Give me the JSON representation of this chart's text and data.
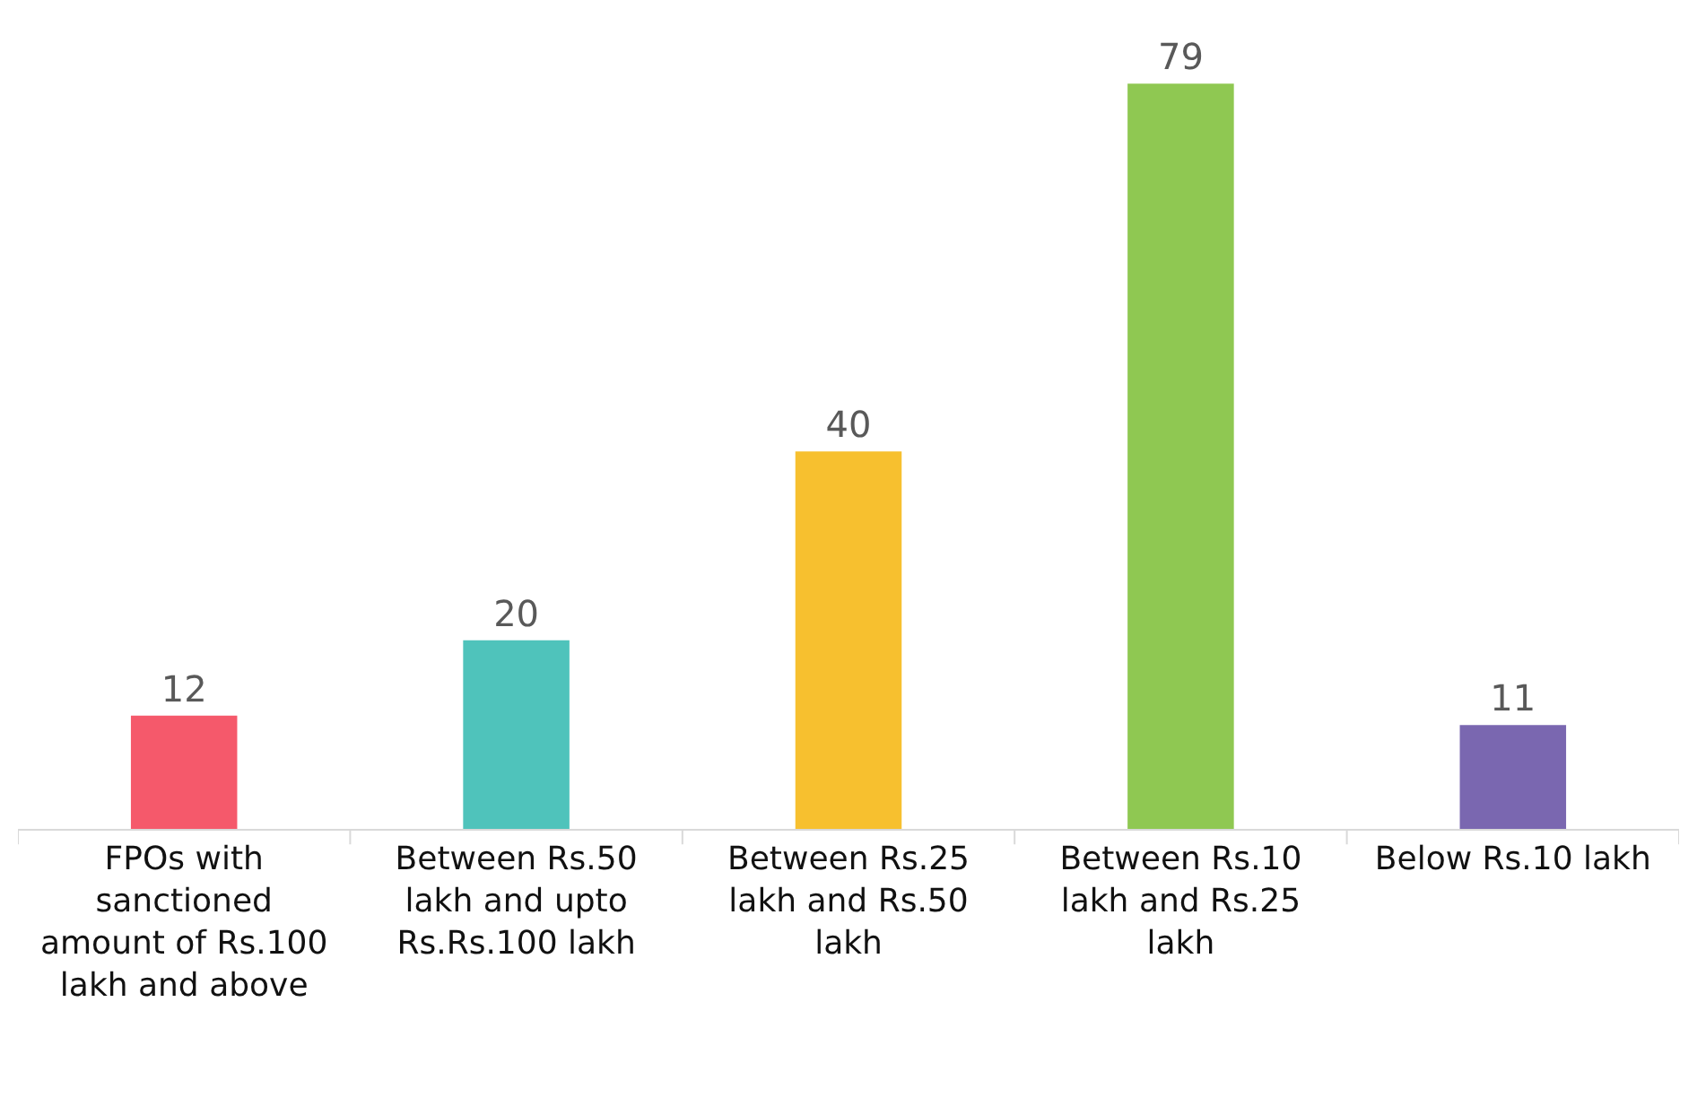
{
  "chart_data": {
    "type": "bar",
    "categories": [
      "FPOs with sanctioned amount of Rs.100 lakh and above",
      "Between Rs.50 lakh and upto Rs.Rs.100 lakh",
      "Between Rs.25 lakh and Rs.50 lakh",
      "Between Rs.10 lakh and Rs.25 lakh",
      "Below Rs.10 lakh"
    ],
    "values": [
      12,
      20,
      40,
      79,
      11
    ],
    "colors": [
      "#f5596b",
      "#4fc3bb",
      "#f7c02f",
      "#8fc852",
      "#7a67b0"
    ],
    "data_labels": true,
    "legend": false
  }
}
